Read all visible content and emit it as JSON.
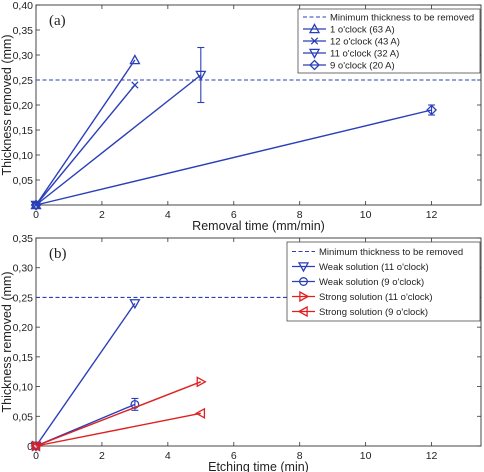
{
  "chart_data": [
    {
      "type": "line",
      "panel_label": "(a)",
      "xlabel": "Removal time (mm/min)",
      "ylabel": "Thickness removed (mm)",
      "xlim": [
        0,
        13.5
      ],
      "ylim": [
        0,
        0.4
      ],
      "xticks": [
        "0",
        "2",
        "4",
        "6",
        "8",
        "10",
        "12"
      ],
      "yticks": [
        "0,05",
        "0,10",
        "0,15",
        "0,20",
        "0,25",
        "0,30",
        "0,35",
        "0,40"
      ],
      "legend_position": "top-right",
      "threshold": {
        "name": "Minimum thickness to be removed",
        "y": 0.25,
        "color": "#2b3fb8"
      },
      "series": [
        {
          "name": "1 o'clock (63 A)",
          "marker": "triangle-up",
          "color": "#2b3fb8",
          "points": [
            {
              "x": 0,
              "y": 0
            },
            {
              "x": 3,
              "y": 0.29
            }
          ]
        },
        {
          "name": "12 o'clock (43 A)",
          "marker": "x",
          "color": "#2b3fb8",
          "points": [
            {
              "x": 0,
              "y": 0
            },
            {
              "x": 3,
              "y": 0.24
            }
          ]
        },
        {
          "name": "11 o'clock (32 A)",
          "marker": "triangle-down",
          "color": "#2b3fb8",
          "points": [
            {
              "x": 0,
              "y": 0
            },
            {
              "x": 5,
              "y": 0.26,
              "err": 0.055
            }
          ]
        },
        {
          "name": "9 o'clock (20 A)",
          "marker": "diamond",
          "color": "#2b3fb8",
          "points": [
            {
              "x": 0,
              "y": 0
            },
            {
              "x": 12,
              "y": 0.19,
              "err": 0.01
            }
          ]
        }
      ]
    },
    {
      "type": "line",
      "panel_label": "(b)",
      "xlabel": "Etching time (min)",
      "ylabel": "Thickness removed (mm)",
      "xlim": [
        0,
        13.5
      ],
      "ylim": [
        0,
        0.35
      ],
      "xticks": [
        "0",
        "2",
        "4",
        "6",
        "8",
        "10",
        "12"
      ],
      "yticks": [
        "0",
        "0,05",
        "0,10",
        "0,15",
        "0,20",
        "0,25",
        "0,30",
        "0,35"
      ],
      "legend_position": "top-right",
      "threshold": {
        "name": "Minimum thickness to be removed",
        "y": 0.25,
        "color": "#2b3fb8"
      },
      "series": [
        {
          "name": "Weak solution (11 o'clock)",
          "marker": "triangle-down",
          "color": "#2b3fb8",
          "points": [
            {
              "x": 0,
              "y": 0
            },
            {
              "x": 3,
              "y": 0.24
            }
          ]
        },
        {
          "name": "Weak solution (9 o'clock)",
          "marker": "circle",
          "color": "#2b3fb8",
          "points": [
            {
              "x": 0,
              "y": 0
            },
            {
              "x": 3,
              "y": 0.07,
              "err": 0.01
            }
          ]
        },
        {
          "name": "Strong solution (11 o'clock)",
          "marker": "triangle-right",
          "color": "#e02020",
          "points": [
            {
              "x": 0,
              "y": 0
            },
            {
              "x": 5,
              "y": 0.108
            }
          ]
        },
        {
          "name": "Strong solution (9 o'clock)",
          "marker": "triangle-left",
          "color": "#e02020",
          "points": [
            {
              "x": 0,
              "y": 0
            },
            {
              "x": 5,
              "y": 0.055
            }
          ]
        }
      ]
    }
  ]
}
